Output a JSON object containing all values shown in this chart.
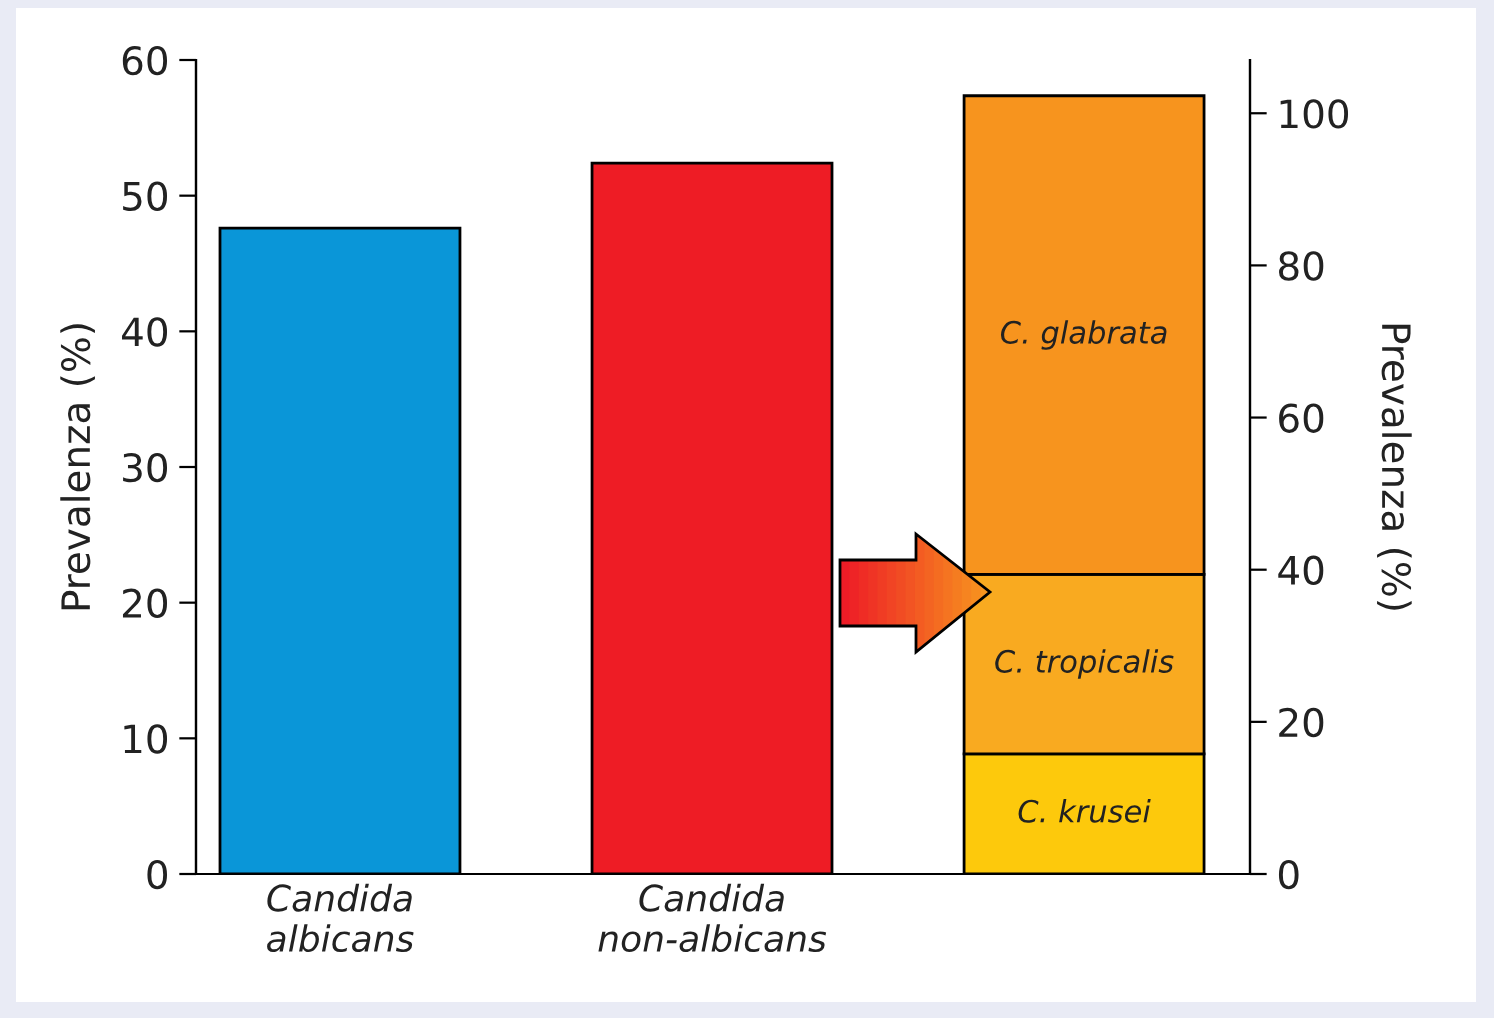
{
  "chart_data": {
    "type": "bar",
    "categories": [
      "Candida\nalbicans",
      "Candida\nnon-albicans",
      null
    ],
    "ylabel": "Prevalenza (%)",
    "ylim": [
      0,
      60
    ],
    "yticks": [
      0,
      10,
      20,
      30,
      40,
      50,
      60
    ],
    "y2label": "Prevalenza (%)",
    "y2lim": [
      0,
      107
    ],
    "y2ticks": [
      0,
      20,
      40,
      60,
      80,
      100
    ],
    "grid": false,
    "stacked": true,
    "series": [
      {
        "colors": [
          "#0a96d8",
          "#ee1c25",
          null
        ],
        "values": [
          47.6,
          52.4,
          null
        ]
      },
      {
        "name": "C. krusei",
        "color": "#fdc90c",
        "values": [
          null,
          null,
          15.8
        ],
        "axis": "y2"
      },
      {
        "name": "C. tropicalis",
        "color": "#f9aa20",
        "values": [
          null,
          null,
          23.6
        ],
        "axis": "y2"
      },
      {
        "name": "C. glabrata",
        "color": "#f7941e",
        "values": [
          null,
          null,
          62.9
        ],
        "axis": "y2"
      }
    ]
  }
}
